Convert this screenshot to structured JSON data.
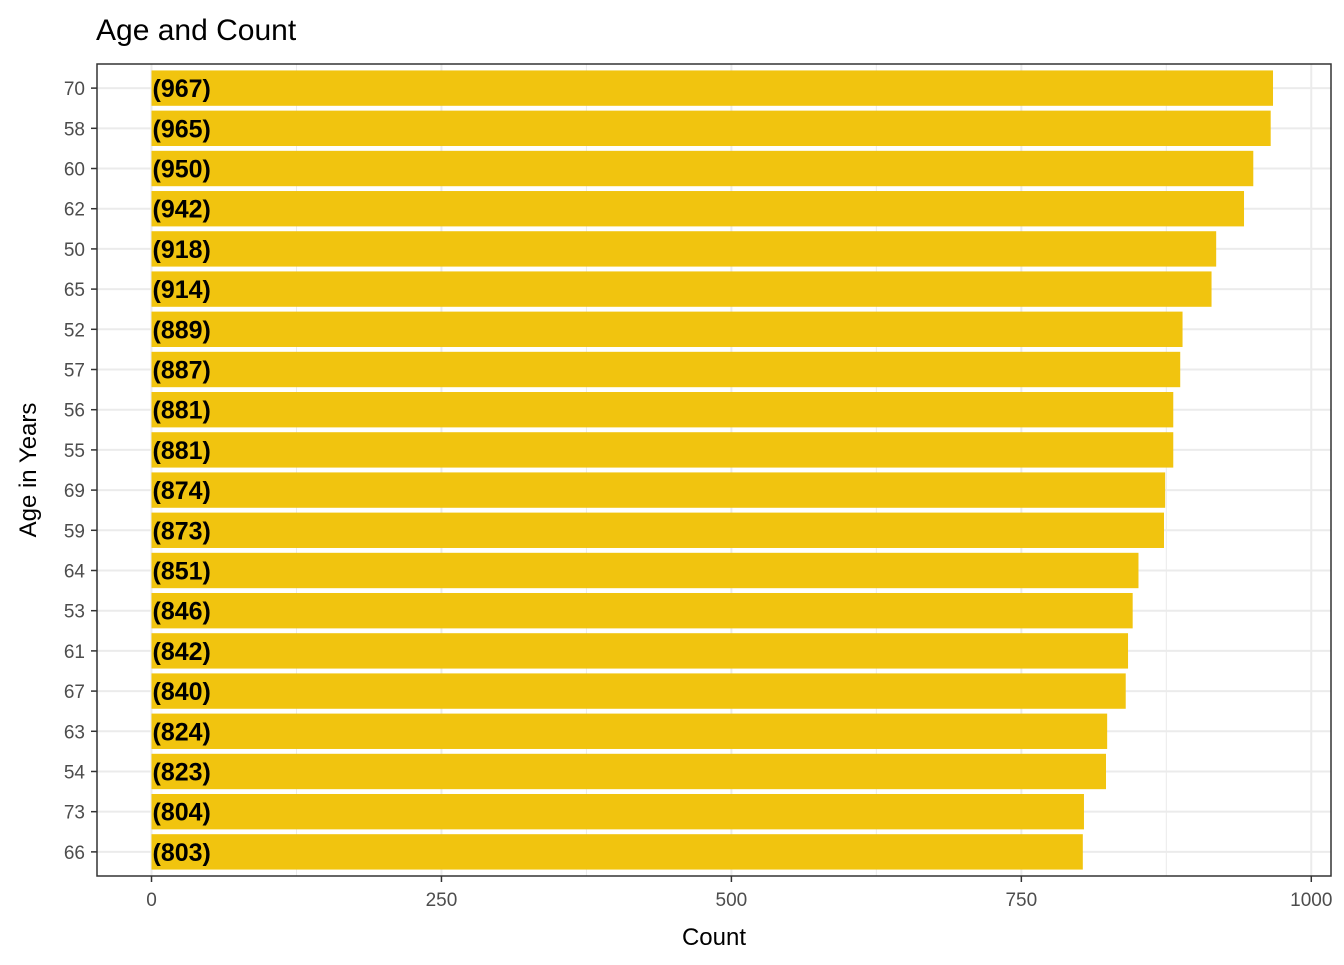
{
  "chart_data": {
    "type": "bar",
    "orientation": "horizontal",
    "title": "Age and Count",
    "xlabel": "Count",
    "ylabel": "Age in Years",
    "categories": [
      "70",
      "58",
      "60",
      "62",
      "50",
      "65",
      "52",
      "57",
      "56",
      "55",
      "69",
      "59",
      "64",
      "53",
      "61",
      "67",
      "63",
      "54",
      "73",
      "66"
    ],
    "values": [
      967,
      965,
      950,
      942,
      918,
      914,
      889,
      887,
      881,
      881,
      874,
      873,
      851,
      846,
      842,
      840,
      824,
      823,
      804,
      803
    ],
    "data_labels": [
      "(967)",
      "(965)",
      "(950)",
      "(942)",
      "(918)",
      "(914)",
      "(889)",
      "(887)",
      "(881)",
      "(881)",
      "(874)",
      "(873)",
      "(851)",
      "(846)",
      "(842)",
      "(840)",
      "(824)",
      "(823)",
      "(804)",
      "(803)"
    ],
    "x_ticks": [
      0,
      250,
      500,
      750,
      1000
    ],
    "x_tick_labels": [
      "0",
      "250",
      "500",
      "750",
      "1000"
    ],
    "xlim": [
      -47,
      1017
    ],
    "grid": true,
    "legend": "none",
    "colors": {
      "bar": "#F1C40F",
      "grid": "#EBEBEB",
      "panel_border": "#333333"
    }
  }
}
